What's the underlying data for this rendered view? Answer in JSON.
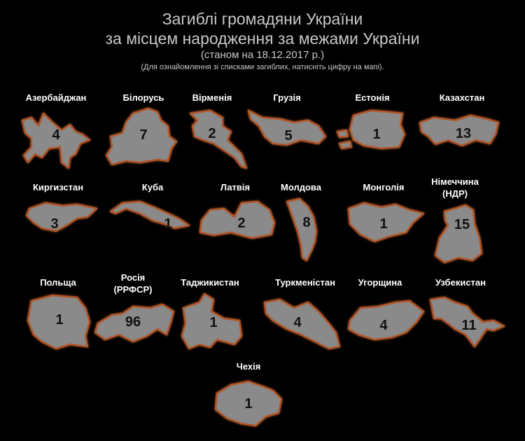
{
  "header": {
    "title_line1": "Загиблі громадяни України",
    "title_line2": "за місцем народження за межами України",
    "date": "(станом на 18.12.2017 р.)",
    "note": "(Для ознайомлення зі списками загиблих, натисніть цифру на мапі)."
  },
  "colors": {
    "background": "#000000",
    "shape_fill": "#8a8a8a",
    "shape_outline": "#b0562a"
  },
  "countries": [
    {
      "name": "Азербайджан",
      "count": "4"
    },
    {
      "name": "Білорусь",
      "count": "7"
    },
    {
      "name": "Вірменія",
      "count": "2"
    },
    {
      "name": "Грузія",
      "count": "5"
    },
    {
      "name": "Естонія",
      "count": "1"
    },
    {
      "name": "Казахстан",
      "count": "13"
    },
    {
      "name": "Киргизстан",
      "count": "3"
    },
    {
      "name": "Куба",
      "count": "1"
    },
    {
      "name": "Латвія",
      "count": "2"
    },
    {
      "name": "Молдова",
      "count": "8"
    },
    {
      "name": "Монголія",
      "count": "1"
    },
    {
      "name": "Німеччина",
      "name2": "(НДР)",
      "count": "15"
    },
    {
      "name": "Польща",
      "count": "1"
    },
    {
      "name": "Росія",
      "name2": "(РРФСР)",
      "count": "96"
    },
    {
      "name": "Таджикистан",
      "count": "1"
    },
    {
      "name": "Туркменістан",
      "count": "4"
    },
    {
      "name": "Угорщина",
      "count": "4"
    },
    {
      "name": "Узбекистан",
      "count": "11"
    },
    {
      "name": "Чехія",
      "count": "1"
    }
  ]
}
